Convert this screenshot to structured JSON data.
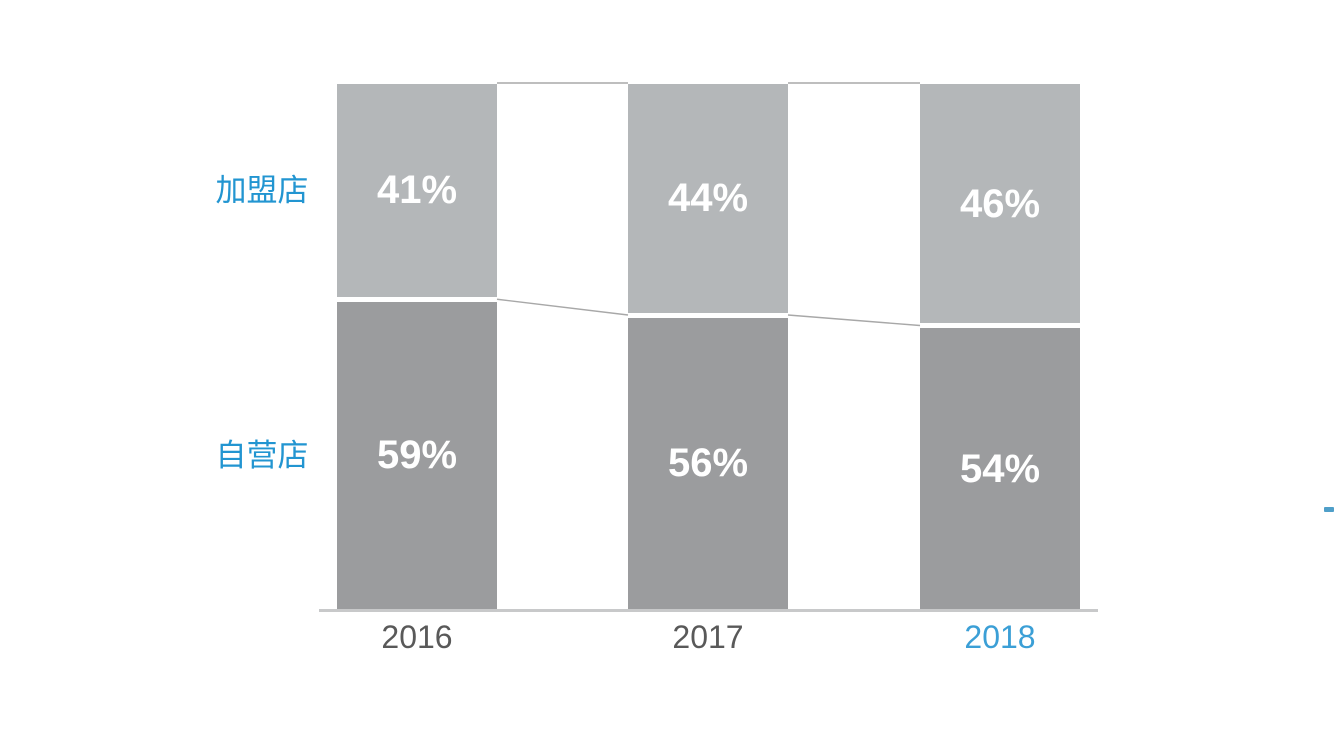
{
  "page": {
    "background": "#ffffff"
  },
  "chart_data": {
    "type": "bar",
    "subtype": "stacked-100-percent",
    "categories": [
      "2016",
      "2017",
      "2018"
    ],
    "series": [
      {
        "name": "自营店",
        "position": "bottom",
        "values": [
          59,
          56,
          54
        ],
        "color": "#9b9c9e"
      },
      {
        "name": "加盟店",
        "position": "top",
        "values": [
          41,
          44,
          46
        ],
        "color": "#b4b7b9"
      }
    ],
    "value_suffix": "%",
    "value_label_color": "#ffffff",
    "series_label_color": "#2295d1",
    "category_label_colors": [
      "#595959",
      "#595959",
      "#3b9fd6"
    ],
    "axis_line_color": "#c8c9ca",
    "connector_line_color": "#a8a8a8",
    "ylim": [
      0,
      100
    ],
    "grid": false,
    "legend_position": "left-of-bars"
  },
  "decorations": {
    "edge_mark_color": "#4f9fc9"
  }
}
